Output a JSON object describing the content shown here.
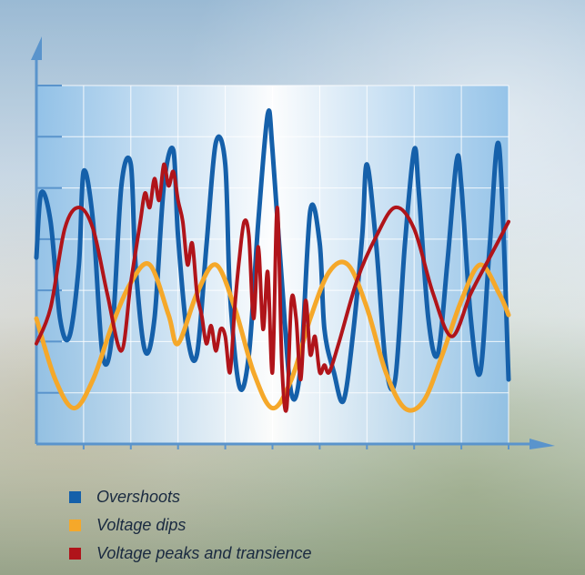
{
  "chart_data": {
    "type": "line",
    "title": "",
    "xlabel": "",
    "ylabel": "",
    "x_ticks": 10,
    "y_ticks": 7,
    "xlim": [
      0,
      1
    ],
    "ylim": [
      0,
      1
    ],
    "grid": true,
    "legend_position": "bottom-left",
    "series": [
      {
        "name": "Overshoots",
        "color": "#1560aa",
        "x": [
          0.0,
          0.01,
          0.03,
          0.05,
          0.07,
          0.09,
          0.1,
          0.12,
          0.14,
          0.16,
          0.18,
          0.2,
          0.21,
          0.23,
          0.25,
          0.27,
          0.29,
          0.3,
          0.32,
          0.34,
          0.36,
          0.38,
          0.4,
          0.41,
          0.43,
          0.45,
          0.47,
          0.49,
          0.5,
          0.52,
          0.54,
          0.56,
          0.58,
          0.6,
          0.61,
          0.63,
          0.65,
          0.67,
          0.69,
          0.7,
          0.72,
          0.74,
          0.76,
          0.78,
          0.8,
          0.81,
          0.83,
          0.85,
          0.87,
          0.89,
          0.9,
          0.92,
          0.94,
          0.96,
          0.98,
          1.0
        ],
        "y": [
          0.52,
          0.7,
          0.62,
          0.35,
          0.3,
          0.5,
          0.76,
          0.62,
          0.25,
          0.3,
          0.72,
          0.78,
          0.5,
          0.26,
          0.35,
          0.72,
          0.82,
          0.58,
          0.3,
          0.25,
          0.55,
          0.84,
          0.78,
          0.42,
          0.16,
          0.25,
          0.62,
          0.92,
          0.82,
          0.45,
          0.14,
          0.22,
          0.65,
          0.56,
          0.32,
          0.2,
          0.12,
          0.3,
          0.58,
          0.78,
          0.55,
          0.22,
          0.18,
          0.55,
          0.82,
          0.7,
          0.35,
          0.25,
          0.5,
          0.79,
          0.72,
          0.35,
          0.2,
          0.55,
          0.83,
          0.18
        ]
      },
      {
        "name": "Voltage dips",
        "color": "#f5a82a",
        "x": [
          0.0,
          0.04,
          0.08,
          0.12,
          0.16,
          0.2,
          0.24,
          0.28,
          0.3,
          0.34,
          0.38,
          0.42,
          0.46,
          0.5,
          0.54,
          0.58,
          0.62,
          0.66,
          0.7,
          0.74,
          0.78,
          0.82,
          0.86,
          0.9,
          0.94,
          0.98,
          1.0
        ],
        "y": [
          0.35,
          0.18,
          0.1,
          0.18,
          0.33,
          0.45,
          0.5,
          0.36,
          0.28,
          0.42,
          0.5,
          0.38,
          0.2,
          0.1,
          0.18,
          0.35,
          0.48,
          0.5,
          0.38,
          0.2,
          0.1,
          0.12,
          0.25,
          0.4,
          0.5,
          0.42,
          0.36
        ]
      },
      {
        "name": "Voltage peaks and transience",
        "color": "#b0141a",
        "x": [
          0.0,
          0.03,
          0.06,
          0.09,
          0.12,
          0.15,
          0.18,
          0.2,
          0.22,
          0.23,
          0.24,
          0.25,
          0.26,
          0.27,
          0.28,
          0.29,
          0.3,
          0.31,
          0.32,
          0.33,
          0.34,
          0.35,
          0.36,
          0.37,
          0.38,
          0.39,
          0.4,
          0.41,
          0.42,
          0.43,
          0.44,
          0.45,
          0.46,
          0.47,
          0.48,
          0.49,
          0.5,
          0.51,
          0.52,
          0.53,
          0.54,
          0.55,
          0.56,
          0.57,
          0.58,
          0.59,
          0.6,
          0.61,
          0.62,
          0.64,
          0.68,
          0.72,
          0.76,
          0.8,
          0.84,
          0.88,
          0.92,
          0.96,
          1.0
        ],
        "y": [
          0.28,
          0.38,
          0.6,
          0.66,
          0.6,
          0.42,
          0.26,
          0.45,
          0.62,
          0.7,
          0.66,
          0.74,
          0.68,
          0.78,
          0.72,
          0.76,
          0.68,
          0.62,
          0.5,
          0.56,
          0.42,
          0.36,
          0.28,
          0.33,
          0.26,
          0.32,
          0.3,
          0.2,
          0.38,
          0.52,
          0.62,
          0.58,
          0.35,
          0.55,
          0.32,
          0.48,
          0.2,
          0.66,
          0.22,
          0.1,
          0.4,
          0.35,
          0.18,
          0.4,
          0.25,
          0.3,
          0.2,
          0.22,
          0.2,
          0.28,
          0.46,
          0.58,
          0.66,
          0.6,
          0.42,
          0.3,
          0.42,
          0.52,
          0.62
        ]
      }
    ]
  },
  "legend": [
    {
      "label": "Overshoots",
      "color": "#1560aa"
    },
    {
      "label": "Voltage dips",
      "color": "#f5a82a"
    },
    {
      "label": "Voltage peaks and transience",
      "color": "#b0141a"
    }
  ],
  "colors": {
    "axis": "#5a94cc",
    "plot_bg_edge": "#8fc0e6",
    "plot_bg_center": "#ffffff",
    "grid": "#ffffff"
  }
}
